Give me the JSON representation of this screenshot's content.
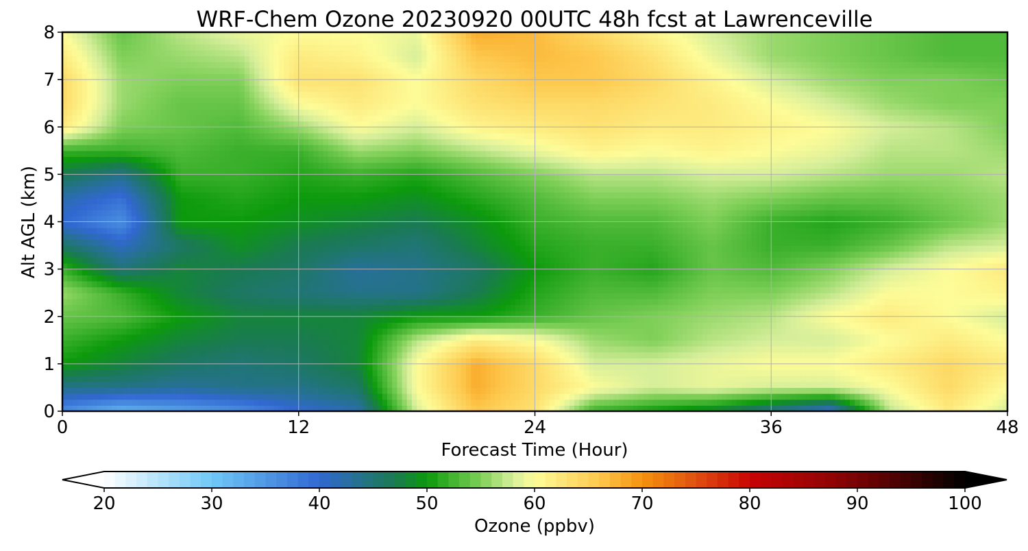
{
  "chart_data": {
    "type": "heatmap",
    "title": "WRF-Chem Ozone  20230920 00UTC 48h fcst at Lawrenceville",
    "xlabel": "Forecast Time (Hour)",
    "ylabel": "Alt AGL (km)",
    "xlim": [
      0,
      48
    ],
    "ylim": [
      0,
      8
    ],
    "xticks": [
      0,
      12,
      24,
      36,
      48
    ],
    "yticks": [
      0,
      1,
      2,
      3,
      4,
      5,
      6,
      7,
      8
    ],
    "grid": true,
    "x": [
      0,
      3,
      6,
      9,
      12,
      15,
      18,
      21,
      24,
      27,
      30,
      33,
      36,
      39,
      42,
      45,
      48
    ],
    "y": [
      0,
      0.5,
      1,
      1.5,
      2,
      2.5,
      3,
      3.5,
      4,
      4.5,
      5,
      5.5,
      6,
      6.5,
      7,
      7.5,
      8
    ],
    "z": [
      [
        36,
        32,
        34,
        36,
        40,
        42,
        58,
        66,
        63,
        52,
        50,
        48,
        44,
        40,
        57,
        62,
        58
      ],
      [
        44,
        44,
        43,
        44,
        44,
        46,
        60,
        68,
        64,
        60,
        58,
        59,
        58,
        58,
        60,
        64,
        60
      ],
      [
        50,
        48,
        46,
        45,
        46,
        48,
        60,
        68,
        64,
        58,
        58,
        59,
        60,
        60,
        62,
        64,
        62
      ],
      [
        52,
        50,
        48,
        47,
        47,
        48,
        57,
        62,
        60,
        56,
        55,
        57,
        58,
        58,
        60,
        62,
        60
      ],
      [
        54,
        53,
        50,
        48,
        48,
        48,
        50,
        50,
        52,
        54,
        55,
        56,
        57,
        60,
        62,
        60,
        58
      ],
      [
        56,
        52,
        48,
        46,
        45,
        44,
        44,
        47,
        51,
        53,
        53,
        55,
        55,
        57,
        60,
        60,
        61
      ],
      [
        52,
        45,
        48,
        47,
        46,
        43,
        44,
        46,
        50,
        52,
        51,
        54,
        53,
        55,
        58,
        60,
        62
      ],
      [
        46,
        41,
        46,
        49,
        47,
        46,
        45,
        48,
        51,
        52,
        52,
        54,
        52,
        52,
        54,
        57,
        58
      ],
      [
        40,
        36,
        50,
        50,
        49,
        48,
        47,
        49,
        52,
        53,
        53,
        55,
        52,
        51,
        52,
        54,
        56
      ],
      [
        42,
        39,
        50,
        51,
        50,
        50,
        49,
        51,
        53,
        55,
        55,
        56,
        55,
        54,
        54,
        55,
        56
      ],
      [
        47,
        44,
        52,
        52,
        51,
        52,
        51,
        53,
        55,
        57,
        57,
        58,
        58,
        57,
        56,
        56,
        57
      ],
      [
        52,
        52,
        53,
        52,
        52,
        56,
        55,
        57,
        59,
        61,
        60,
        61,
        60,
        59,
        57,
        57,
        56
      ],
      [
        62,
        55,
        54,
        53,
        56,
        60,
        58,
        61,
        62,
        63,
        62,
        62,
        61,
        60,
        58,
        57,
        55
      ],
      [
        64,
        56,
        54,
        54,
        60,
        62,
        60,
        63,
        64,
        64,
        63,
        62,
        60,
        58,
        56,
        55,
        55
      ],
      [
        64,
        56,
        55,
        55,
        63,
        63,
        60,
        64,
        66,
        66,
        64,
        61,
        58,
        56,
        55,
        55,
        54
      ],
      [
        62,
        55,
        56,
        57,
        62,
        61,
        58,
        66,
        67,
        66,
        63,
        59,
        56,
        55,
        54,
        53,
        53
      ],
      [
        60,
        54,
        57,
        59,
        60,
        60,
        59,
        68,
        67,
        64,
        61,
        58,
        56,
        55,
        54,
        53,
        53
      ]
    ],
    "colorbar": {
      "label": "Ozone  (ppbv)",
      "min": 20,
      "max": 100,
      "ticks": [
        20,
        30,
        40,
        50,
        60,
        70,
        80,
        90,
        100
      ],
      "extend": "both",
      "colormap": [
        {
          "value": 20,
          "color": "#ffffff"
        },
        {
          "value": 30,
          "color": "#6fc8f7"
        },
        {
          "value": 40,
          "color": "#3168d1"
        },
        {
          "value": 47,
          "color": "#1a7a52"
        },
        {
          "value": 50,
          "color": "#0c9a0c"
        },
        {
          "value": 55,
          "color": "#7ecf58"
        },
        {
          "value": 58,
          "color": "#d6ee9a"
        },
        {
          "value": 60,
          "color": "#fdfc98"
        },
        {
          "value": 66,
          "color": "#fdc84d"
        },
        {
          "value": 70,
          "color": "#f5920e"
        },
        {
          "value": 75,
          "color": "#e05010"
        },
        {
          "value": 80,
          "color": "#c80404"
        },
        {
          "value": 88,
          "color": "#8e0404"
        },
        {
          "value": 95,
          "color": "#3c0202"
        },
        {
          "value": 100,
          "color": "#000000"
        }
      ]
    }
  }
}
